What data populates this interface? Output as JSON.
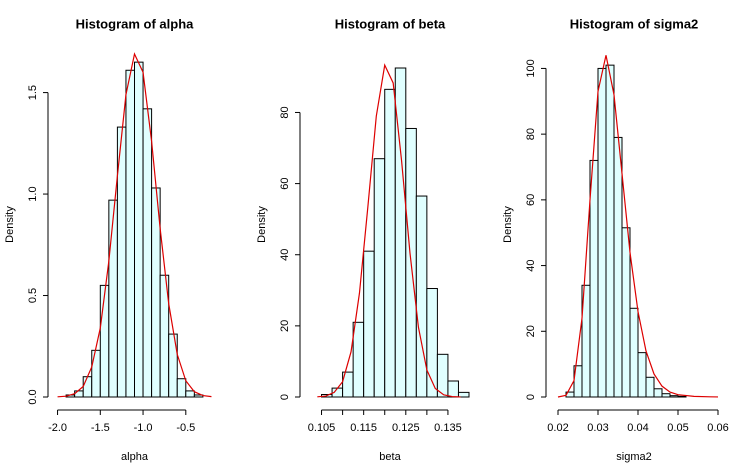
{
  "chart_data": [
    {
      "type": "histogram",
      "title": "Histogram of alpha",
      "xlabel": "alpha",
      "ylabel": "Density",
      "bins": [
        -1.9,
        -1.8,
        -1.7,
        -1.6,
        -1.5,
        -1.4,
        -1.3,
        -1.2,
        -1.1,
        -1.0,
        -0.9,
        -0.8,
        -0.7,
        -0.6,
        -0.5,
        -0.4,
        -0.3
      ],
      "values": [
        0.01,
        0.03,
        0.1,
        0.23,
        0.55,
        0.97,
        1.33,
        1.61,
        1.65,
        1.42,
        1.03,
        0.6,
        0.31,
        0.09,
        0.03,
        0.01
      ],
      "color": "#e0ffff",
      "edgecolor": "#000000",
      "curve": {
        "color": "#dd0000",
        "x": [
          -2.0,
          -1.9,
          -1.8,
          -1.7,
          -1.6,
          -1.5,
          -1.4,
          -1.3,
          -1.2,
          -1.1,
          -1.0,
          -0.9,
          -0.8,
          -0.7,
          -0.6,
          -0.5,
          -0.4,
          -0.3,
          -0.2
        ],
        "y": [
          0.001,
          0.004,
          0.016,
          0.052,
          0.148,
          0.34,
          0.67,
          1.09,
          1.49,
          1.69,
          1.6,
          1.26,
          0.83,
          0.46,
          0.21,
          0.08,
          0.026,
          0.007,
          0.002
        ]
      },
      "xlim": [
        -2.1,
        -0.1
      ],
      "ylim": [
        0,
        1.7
      ],
      "xticks": [
        {
          "value": -2.0,
          "label": "-2.0"
        },
        -1.5,
        {
          "value": -1.0,
          "label": "-1.0"
        },
        -0.5
      ],
      "yticks": [
        {
          "value": 0,
          "label": "0.0"
        },
        0.5,
        {
          "value": 1.0,
          "label": "1.0"
        },
        1.5
      ]
    },
    {
      "type": "histogram",
      "title": "Histogram of beta",
      "xlabel": "beta",
      "ylabel": "Density",
      "bins": [
        0.105,
        0.1075,
        0.11,
        0.1125,
        0.115,
        0.1175,
        0.12,
        0.1225,
        0.125,
        0.1275,
        0.13,
        0.1325,
        0.135,
        0.1375,
        0.14
      ],
      "values": [
        0.7,
        2.5,
        7,
        21,
        41,
        67,
        86.5,
        92.5,
        75.5,
        56.5,
        30.5,
        12,
        4.5,
        1.3
      ],
      "color": "#e0ffff",
      "edgecolor": "#000000",
      "curve": {
        "color": "#dd0000",
        "x": [
          0.104,
          0.106,
          0.108,
          0.11,
          0.112,
          0.114,
          0.116,
          0.118,
          0.12,
          0.122,
          0.124,
          0.126,
          0.128,
          0.13,
          0.132,
          0.134,
          0.136,
          0.138
        ],
        "y": [
          0.05,
          0.27,
          1.3,
          4.3,
          12.7,
          29.2,
          53.5,
          79,
          93.3,
          88.3,
          66.4,
          40.4,
          19.6,
          7.6,
          2.4,
          0.6,
          0.12,
          0.02
        ]
      },
      "xlim": [
        0.1025,
        0.14
      ],
      "ylim": [
        0,
        97
      ],
      "xticks": [
        0.105,
        0.115,
        0.125,
        0.135
      ],
      "xminor": [
        0.11,
        0.12,
        0.13
      ],
      "yticks": [
        0,
        20,
        40,
        60,
        80
      ]
    },
    {
      "type": "histogram",
      "title": "Histogram of sigma2",
      "xlabel": "sigma2",
      "ylabel": "Density",
      "bins": [
        0.022,
        0.024,
        0.026,
        0.028,
        0.03,
        0.032,
        0.034,
        0.036,
        0.038,
        0.04,
        0.042,
        0.044,
        0.046,
        0.048,
        0.05,
        0.052
      ],
      "values": [
        1.5,
        9.5,
        34,
        72,
        100,
        101,
        79,
        51.5,
        27,
        13.5,
        6,
        2.5,
        1,
        0.4,
        0.2
      ],
      "color": "#e0ffff",
      "edgecolor": "#000000",
      "curve": {
        "color": "#dd0000",
        "x": [
          0.02,
          0.022,
          0.024,
          0.026,
          0.028,
          0.03,
          0.032,
          0.034,
          0.036,
          0.038,
          0.04,
          0.042,
          0.044,
          0.046,
          0.048,
          0.05,
          0.054,
          0.058,
          0.06
        ],
        "y": [
          0,
          0.5,
          5,
          24,
          60,
          93,
          104,
          92,
          68,
          44,
          26,
          14,
          7,
          3.3,
          1.5,
          0.7,
          0.2,
          0.05,
          0.02
        ]
      },
      "xlim": [
        0.018,
        0.06
      ],
      "ylim": [
        0,
        105
      ],
      "xticks": [
        0.02,
        0.03,
        0.04,
        0.05,
        0.06
      ],
      "yticks": [
        0,
        20,
        40,
        60,
        80,
        100
      ]
    }
  ]
}
